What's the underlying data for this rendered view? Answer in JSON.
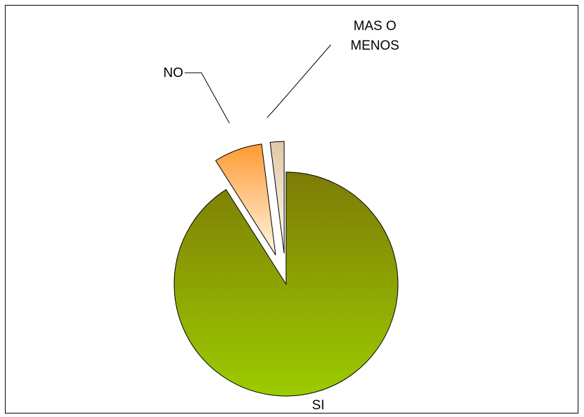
{
  "chart_data": {
    "type": "pie",
    "title": "",
    "slices": [
      {
        "label": "SI",
        "value": 91,
        "color_dark": "#7d7b06",
        "color_light": "#9ccc00",
        "exploded": false
      },
      {
        "label": "NO",
        "value": 7,
        "color_dark": "#ff9a33",
        "color_light": "#fff7e6",
        "exploded": true
      },
      {
        "label": "MAS O MENOS",
        "label_lines": [
          "MAS O",
          "MENOS"
        ],
        "value": 2,
        "color_dark": "#e1c6a8",
        "color_light": "#fffff0",
        "exploded": true
      }
    ],
    "legend": "none",
    "border": true
  }
}
